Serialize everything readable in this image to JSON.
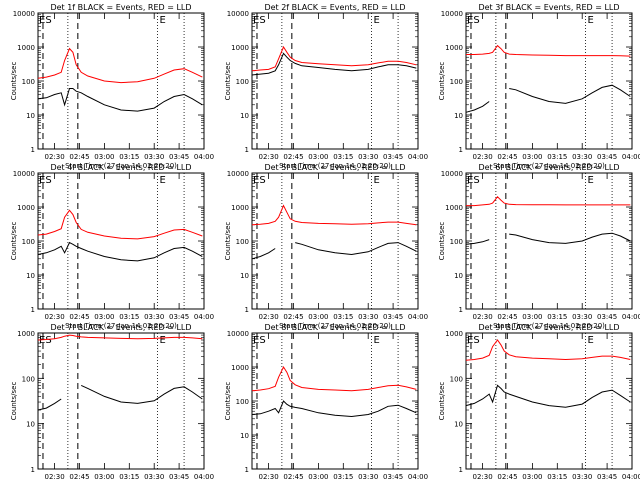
{
  "colors": {
    "events": "#000000",
    "lld": "#ff0000",
    "background": "#ffffff"
  },
  "time_ticks": [
    "02:30",
    "02:45",
    "03:00",
    "03:15",
    "03:30",
    "03:45",
    "04:00"
  ],
  "y_ticks": [
    "1",
    "10",
    "100",
    "1000",
    "10000"
  ],
  "xlabel": "Start Time (27-Jan-14 02:20:20)",
  "ylabel": "Counts/sec",
  "marker_labels": {
    "start": "ES",
    "end": "E"
  },
  "chart_data": [
    {
      "type": "line",
      "title": "Det 1f BLACK = Events, RED = LLD",
      "ylim": [
        1,
        10000
      ],
      "xlabel": "Start Time (27-Jan-14 02:20:20)",
      "ylabel": "Counts/sec",
      "x_minutes": [
        0,
        5,
        10,
        14,
        16,
        19,
        21,
        23,
        26,
        30,
        40,
        50,
        60,
        70,
        76,
        82,
        88,
        93,
        99
      ],
      "series": [
        {
          "name": "Events",
          "color": "#000000",
          "values": [
            30,
            32,
            40,
            45,
            20,
            60,
            60,
            50,
            45,
            35,
            20,
            14,
            13,
            16,
            25,
            35,
            40,
            30,
            20
          ]
        },
        {
          "name": "LLD",
          "color": "#ff0000",
          "values": [
            120,
            130,
            150,
            180,
            400,
            900,
            700,
            300,
            180,
            140,
            100,
            90,
            95,
            120,
            160,
            210,
            230,
            180,
            130
          ]
        }
      ],
      "markers": {
        "dashed": [
          3,
          24
        ],
        "dotted": [
          18,
          72,
          88
        ]
      }
    },
    {
      "type": "line",
      "title": "Det 2f BLACK = Events, RED = LLD",
      "ylim": [
        1,
        10000
      ],
      "xlabel": "Start Time (27-Jan-14 02:20:20)",
      "ylabel": "Counts/sec",
      "x_minutes": [
        0,
        5,
        10,
        14,
        16,
        19,
        21,
        23,
        26,
        30,
        40,
        50,
        60,
        70,
        76,
        82,
        88,
        93,
        99
      ],
      "series": [
        {
          "name": "Events",
          "color": "#000000",
          "values": [
            150,
            160,
            170,
            200,
            300,
            650,
            500,
            400,
            330,
            280,
            250,
            220,
            200,
            220,
            260,
            300,
            300,
            280,
            240
          ]
        },
        {
          "name": "LLD",
          "color": "#ff0000",
          "values": [
            200,
            210,
            220,
            260,
            450,
            1000,
            700,
            500,
            400,
            350,
            320,
            300,
            280,
            300,
            340,
            380,
            380,
            350,
            300
          ]
        }
      ],
      "markers": {
        "dashed": [
          3,
          24
        ],
        "dotted": [
          18,
          72,
          88
        ]
      }
    },
    {
      "type": "line",
      "title": "Det 3f BLACK = Events, RED = LLD",
      "ylim": [
        1,
        10000
      ],
      "xlabel": "Start Time (27-Jan-14 02:20:20)",
      "ylabel": "Counts/sec",
      "x_minutes": [
        0,
        5,
        10,
        14,
        16,
        19,
        21,
        23,
        26,
        30,
        40,
        50,
        60,
        70,
        76,
        82,
        88,
        93,
        99
      ],
      "series": [
        {
          "name": "Events",
          "color": "#000000",
          "values": [
            12,
            14,
            18,
            25,
            null,
            null,
            null,
            null,
            60,
            55,
            35,
            25,
            22,
            30,
            45,
            65,
            75,
            55,
            35
          ]
        },
        {
          "name": "LLD",
          "color": "#ff0000",
          "values": [
            600,
            600,
            620,
            650,
            700,
            1100,
            900,
            700,
            620,
            600,
            580,
            570,
            560,
            560,
            560,
            560,
            560,
            550,
            540
          ]
        }
      ],
      "markers": {
        "dashed": [
          3,
          24
        ],
        "dotted": [
          18,
          72,
          88
        ]
      }
    },
    {
      "type": "line",
      "title": "Det 4f BLACK = Events, RED = LLD",
      "ylim": [
        1,
        10000
      ],
      "xlabel": "Start Time (27-Jan-14 02:20:20)",
      "ylabel": "Counts/sec",
      "x_minutes": [
        0,
        5,
        10,
        14,
        16,
        19,
        21,
        23,
        26,
        30,
        40,
        50,
        60,
        70,
        76,
        82,
        88,
        93,
        99
      ],
      "series": [
        {
          "name": "Events",
          "color": "#000000",
          "values": [
            40,
            45,
            55,
            70,
            45,
            90,
            80,
            70,
            60,
            50,
            35,
            28,
            26,
            32,
            45,
            60,
            65,
            50,
            35
          ]
        },
        {
          "name": "LLD",
          "color": "#ff0000",
          "values": [
            150,
            160,
            190,
            230,
            500,
            800,
            600,
            350,
            220,
            180,
            140,
            120,
            115,
            135,
            170,
            210,
            220,
            180,
            140
          ]
        }
      ],
      "markers": {
        "dashed": [
          3,
          24
        ],
        "dotted": [
          18,
          72,
          88
        ]
      }
    },
    {
      "type": "line",
      "title": "Det 5f BLACK = Events, RED = LLD",
      "ylim": [
        1,
        10000
      ],
      "xlabel": "Start Time (27-Jan-14 02:20:20)",
      "ylabel": "Counts/sec",
      "x_minutes": [
        0,
        5,
        10,
        14,
        16,
        19,
        21,
        23,
        26,
        30,
        40,
        50,
        60,
        70,
        76,
        82,
        88,
        93,
        99
      ],
      "series": [
        {
          "name": "Events",
          "color": "#000000",
          "values": [
            30,
            35,
            45,
            60,
            null,
            null,
            null,
            null,
            90,
            80,
            55,
            45,
            40,
            48,
            65,
            85,
            90,
            70,
            50
          ]
        },
        {
          "name": "LLD",
          "color": "#ff0000",
          "values": [
            300,
            310,
            330,
            380,
            500,
            1100,
            700,
            450,
            380,
            350,
            330,
            320,
            310,
            320,
            340,
            360,
            360,
            330,
            300
          ]
        }
      ],
      "markers": {
        "dashed": [
          3,
          24
        ],
        "dotted": [
          18,
          72,
          88
        ]
      }
    },
    {
      "type": "line",
      "title": "Det 6f BLACK = Events, RED = LLD",
      "ylim": [
        1,
        10000
      ],
      "xlabel": "Start Time (27-Jan-14 02:20:20)",
      "ylabel": "Counts/sec",
      "x_minutes": [
        0,
        5,
        10,
        14,
        16,
        19,
        21,
        23,
        26,
        30,
        40,
        50,
        60,
        70,
        76,
        82,
        88,
        93,
        99
      ],
      "series": [
        {
          "name": "Events",
          "color": "#000000",
          "values": [
            80,
            85,
            95,
            110,
            null,
            null,
            null,
            null,
            160,
            150,
            110,
            90,
            85,
            100,
            130,
            160,
            170,
            140,
            100
          ]
        },
        {
          "name": "LLD",
          "color": "#ff0000",
          "values": [
            1100,
            1100,
            1150,
            1200,
            1300,
            2000,
            1600,
            1300,
            1200,
            1180,
            1170,
            1160,
            1150,
            1150,
            1150,
            1150,
            1150,
            1150,
            1150
          ]
        }
      ],
      "markers": {
        "dashed": [
          3,
          24
        ],
        "dotted": [
          18,
          72,
          88
        ]
      }
    },
    {
      "type": "line",
      "title": "Det 7f BLACK = Events, RED = LLD",
      "ylim": [
        1,
        1000
      ],
      "xlabel": "Start Time (27-Jan-14 02:20:20)",
      "ylabel": "Counts/sec",
      "x_minutes": [
        0,
        5,
        10,
        14,
        16,
        19,
        21,
        23,
        26,
        30,
        40,
        50,
        60,
        70,
        76,
        82,
        88,
        93,
        99
      ],
      "series": [
        {
          "name": "Events",
          "color": "#000000",
          "values": [
            20,
            22,
            28,
            35,
            null,
            null,
            null,
            null,
            70,
            60,
            40,
            30,
            28,
            32,
            45,
            60,
            65,
            50,
            35
          ]
        },
        {
          "name": "LLD",
          "color": "#ff0000",
          "values": [
            700,
            720,
            750,
            800,
            850,
            900,
            880,
            850,
            820,
            800,
            780,
            760,
            750,
            760,
            780,
            800,
            800,
            780,
            750
          ]
        }
      ],
      "markers": {
        "dashed": [
          3,
          24
        ],
        "dotted": [
          18,
          72,
          88
        ]
      }
    },
    {
      "type": "line",
      "title": "Det 8f BLACK = Events, RED = LLD",
      "ylim": [
        1,
        10000
      ],
      "xlabel": "Start Time (27-Jan-14 02:20:20)",
      "ylabel": "Counts/sec",
      "x_minutes": [
        0,
        5,
        10,
        14,
        16,
        19,
        21,
        23,
        26,
        30,
        40,
        50,
        60,
        70,
        76,
        82,
        88,
        93,
        99
      ],
      "series": [
        {
          "name": "Events",
          "color": "#000000",
          "values": [
            40,
            42,
            50,
            60,
            45,
            100,
            80,
            70,
            65,
            60,
            45,
            38,
            35,
            40,
            50,
            70,
            75,
            60,
            45
          ]
        },
        {
          "name": "LLD",
          "color": "#ff0000",
          "values": [
            200,
            210,
            230,
            270,
            500,
            1000,
            700,
            400,
            300,
            250,
            220,
            210,
            200,
            220,
            250,
            280,
            290,
            260,
            220
          ]
        }
      ],
      "markers": {
        "dashed": [
          3,
          24
        ],
        "dotted": [
          18,
          72,
          88
        ]
      }
    },
    {
      "type": "line",
      "title": "Det 9f BLACK = Events, RED = LLD",
      "ylim": [
        1,
        1000
      ],
      "xlabel": "Start Time (27-Jan-14 02:20:20)",
      "ylabel": "Counts/sec",
      "x_minutes": [
        0,
        5,
        10,
        14,
        16,
        19,
        21,
        23,
        26,
        30,
        40,
        50,
        60,
        70,
        76,
        82,
        88,
        93,
        99
      ],
      "series": [
        {
          "name": "Events",
          "color": "#000000",
          "values": [
            25,
            28,
            35,
            45,
            30,
            70,
            60,
            50,
            45,
            40,
            30,
            25,
            23,
            27,
            38,
            50,
            55,
            42,
            30
          ]
        },
        {
          "name": "LLD",
          "color": "#ff0000",
          "values": [
            250,
            260,
            280,
            320,
            500,
            700,
            550,
            400,
            330,
            300,
            280,
            270,
            260,
            270,
            290,
            310,
            310,
            290,
            260
          ]
        }
      ],
      "markers": {
        "dashed": [
          3,
          24
        ],
        "dotted": [
          18,
          72,
          88
        ]
      }
    }
  ]
}
